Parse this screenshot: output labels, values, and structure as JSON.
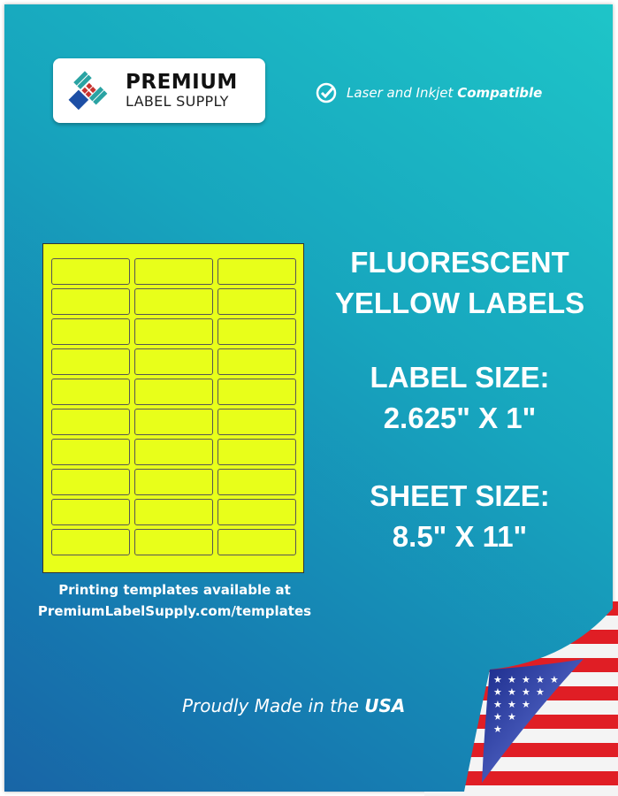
{
  "logo": {
    "line1": "PREMIUM",
    "line2": "LABEL SUPPLY"
  },
  "compat": {
    "icon": "check-circle-icon",
    "text": "Laser and Inkjet ",
    "bold": "Compatible"
  },
  "product": {
    "line1": "FLUORESCENT",
    "line2": "YELLOW LABELS"
  },
  "label_size": {
    "title": "LABEL SIZE:",
    "value": "2.625\" X 1\""
  },
  "sheet_size": {
    "title": "SHEET SIZE:",
    "value": "8.5\" X 11\""
  },
  "templates": {
    "line1": "Printing templates available at",
    "line2": "PremiumLabelSupply.com/templates"
  },
  "made": {
    "text": "Proudly Made in the ",
    "bold": "USA"
  },
  "colors": {
    "label": "#e8ff1a",
    "bg_light": "#1ec5c8",
    "bg_dark": "#1865a6"
  },
  "sheet": {
    "columns": 3,
    "rows": 10
  }
}
